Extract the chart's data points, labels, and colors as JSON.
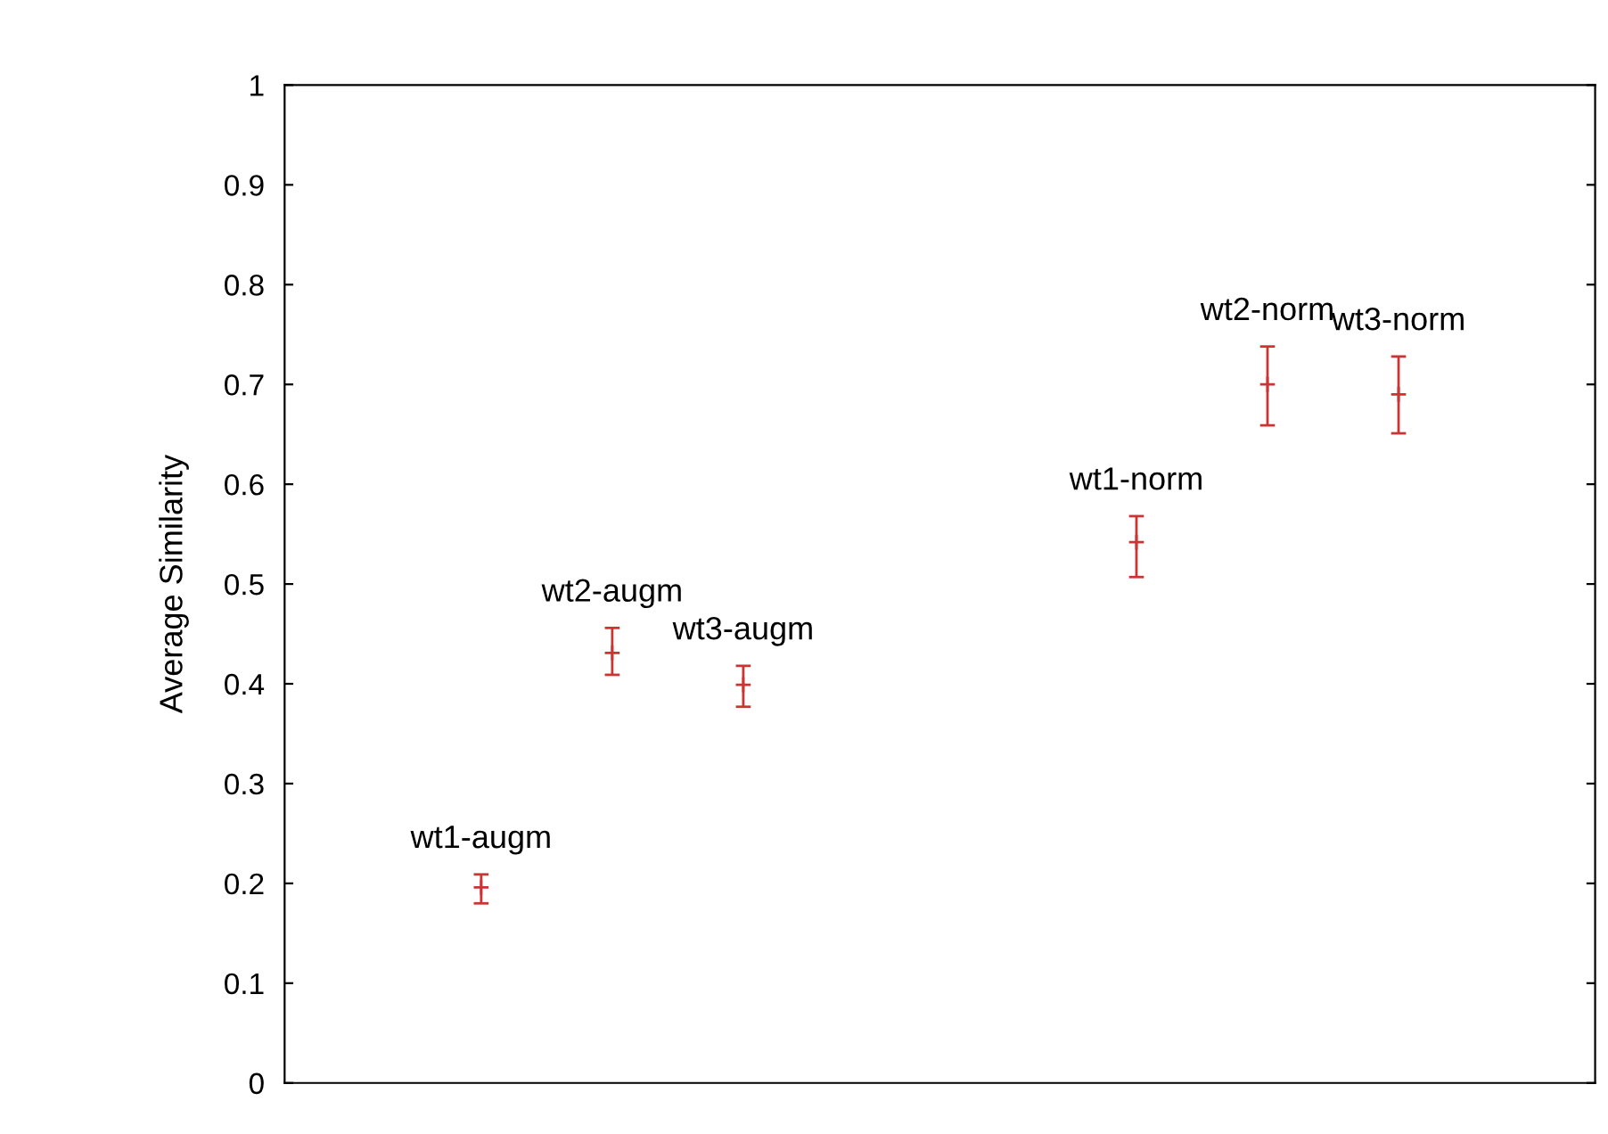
{
  "chart_data": {
    "type": "scatter",
    "ylabel": "Average Similarity",
    "categories": [
      null,
      "wt1-augm",
      "wt2-augm",
      "wt3-augm",
      null,
      null,
      "wt1-norm",
      "wt2-norm",
      "wt3-norm",
      null
    ],
    "values": [
      null,
      0.196,
      0.431,
      0.399,
      null,
      null,
      0.542,
      0.7,
      0.69,
      null
    ],
    "errors": [
      null,
      [
        0.18,
        0.209
      ],
      [
        0.409,
        0.456
      ],
      [
        0.377,
        0.418
      ],
      null,
      null,
      [
        0.507,
        0.568
      ],
      [
        0.659,
        0.738
      ],
      [
        0.651,
        0.728
      ],
      null
    ],
    "color": "#cc3333",
    "marker": "cross",
    "tick_labels": "y",
    "grid": false,
    "ylim": [
      0,
      1
    ],
    "yticks": [
      0,
      0.1,
      0.2,
      0.3,
      0.4,
      0.5,
      0.6,
      0.7,
      0.8,
      0.9,
      1
    ]
  }
}
